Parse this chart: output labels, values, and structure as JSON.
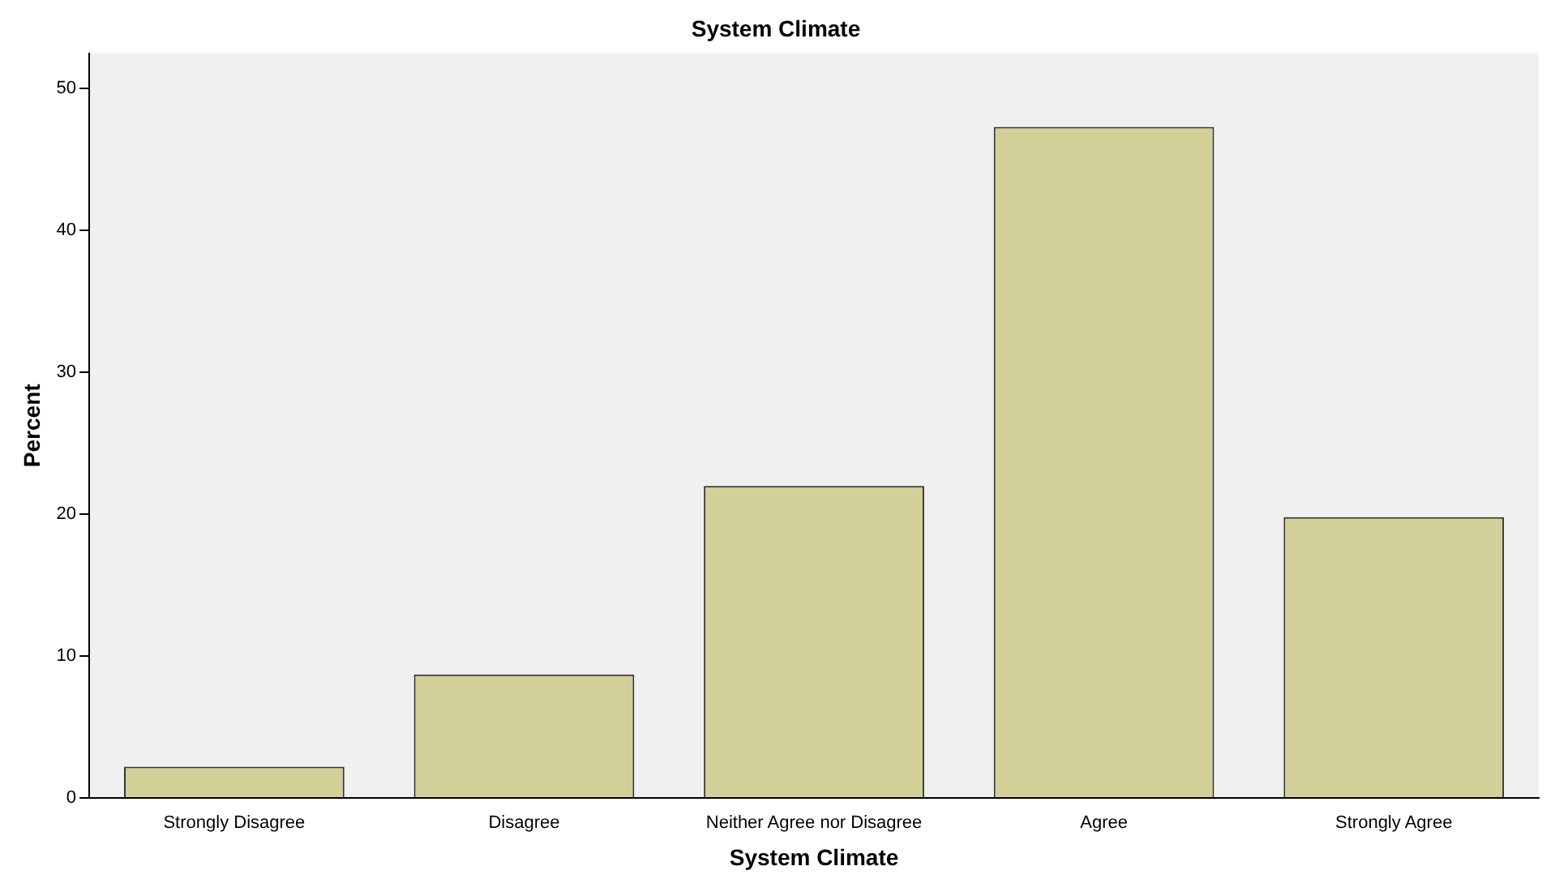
{
  "chart_data": {
    "type": "bar",
    "title": "System Climate",
    "xlabel": "System Climate",
    "ylabel": "Percent",
    "categories": [
      "Strongly Disagree",
      "Disagree",
      "Neither Agree nor Disagree",
      "Agree",
      "Strongly Agree"
    ],
    "values": [
      2.2,
      8.7,
      22.0,
      47.3,
      19.8
    ],
    "color": "#d3cf98",
    "ylim": [
      0,
      52.5
    ],
    "yticks": [
      0,
      10,
      20,
      30,
      40,
      50
    ],
    "grid": false,
    "legend": false
  }
}
